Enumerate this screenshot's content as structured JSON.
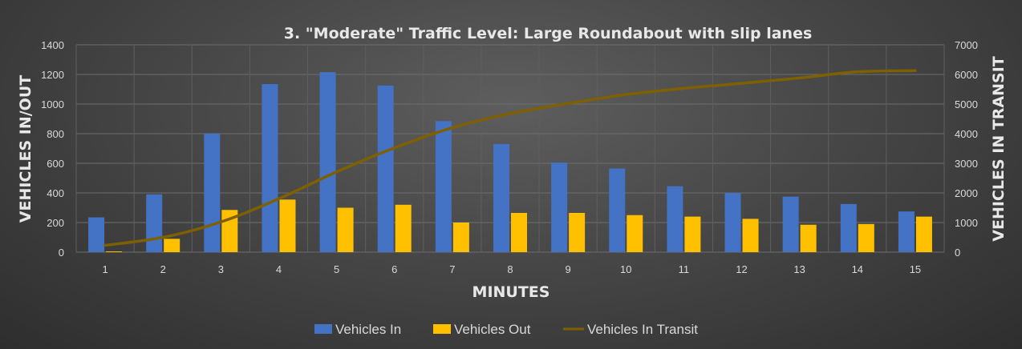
{
  "chart_data": {
    "type": "bar",
    "title": "3. \"Moderate\" Traffic Level: Large Roundabout with slip lanes",
    "xlabel": "MINUTES",
    "ylabel": "VEHICLES IN/OUT",
    "y2label": "VEHICLES IN TRANSIT",
    "categories": [
      "1",
      "2",
      "3",
      "4",
      "5",
      "6",
      "7",
      "8",
      "9",
      "10",
      "11",
      "12",
      "13",
      "14",
      "15"
    ],
    "ylim": [
      0,
      1400
    ],
    "y2lim": [
      0,
      7000
    ],
    "yticks": [
      "0",
      "200",
      "400",
      "600",
      "800",
      "1000",
      "1200",
      "1400"
    ],
    "y2ticks": [
      "0",
      "1000",
      "2000",
      "3000",
      "4000",
      "5000",
      "6000",
      "7000"
    ],
    "grid": true,
    "legend_position": "bottom",
    "series": [
      {
        "name": "Vehicles In",
        "type": "bar",
        "axis": "left",
        "color": "#4472c4",
        "values": [
          235,
          390,
          800,
          1135,
          1215,
          1125,
          885,
          730,
          605,
          565,
          445,
          400,
          375,
          325,
          275
        ]
      },
      {
        "name": "Vehicles Out",
        "type": "bar",
        "axis": "left",
        "color": "#ffc000",
        "values": [
          5,
          90,
          285,
          355,
          300,
          320,
          200,
          265,
          265,
          250,
          240,
          225,
          185,
          190,
          240
        ]
      },
      {
        "name": "Vehicles In Transit",
        "type": "line",
        "axis": "right",
        "color": "#7f6000",
        "values": [
          230,
          500,
          1020,
          1800,
          2710,
          3520,
          4200,
          4680,
          5020,
          5320,
          5530,
          5700,
          5880,
          6090,
          6130
        ]
      }
    ]
  }
}
